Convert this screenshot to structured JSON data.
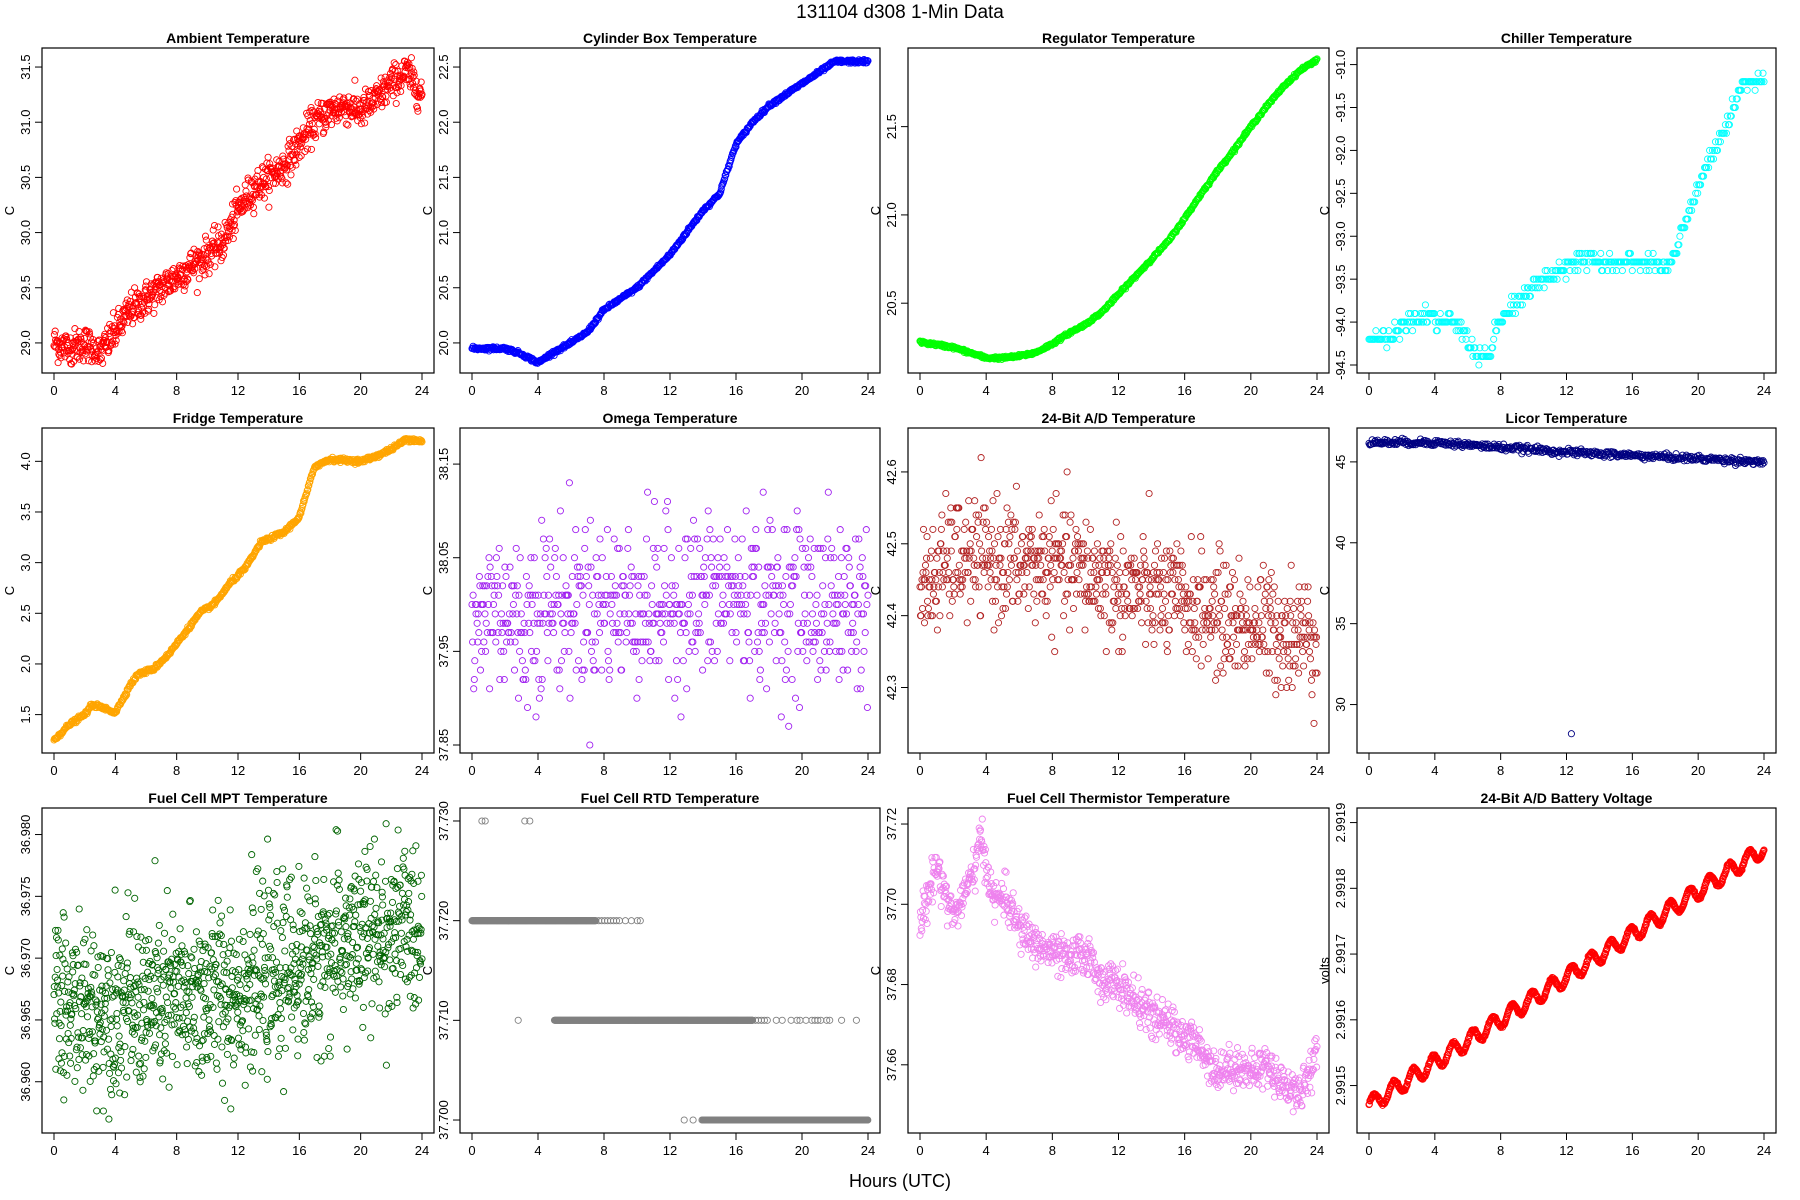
{
  "title": "131104   d308   1-Min Data",
  "x_axis_title": "Hours (UTC)",
  "chart_data": [
    {
      "type": "scatter",
      "title": "Ambient Temperature",
      "ylabel": "C",
      "color": "#ff0000",
      "xlim": [
        0,
        24
      ],
      "xticks": [
        0,
        4,
        8,
        12,
        16,
        20,
        24
      ],
      "ylim": [
        28.8,
        31.6
      ],
      "yticks": [
        29.0,
        29.5,
        30.0,
        30.5,
        31.0,
        31.5
      ],
      "ydec": 1,
      "trend": [
        [
          0,
          29.0
        ],
        [
          1,
          28.95
        ],
        [
          2,
          29.0
        ],
        [
          3,
          28.9
        ],
        [
          4,
          29.1
        ],
        [
          5,
          29.3
        ],
        [
          6,
          29.4
        ],
        [
          7,
          29.5
        ],
        [
          8,
          29.6
        ],
        [
          9,
          29.7
        ],
        [
          10,
          29.8
        ],
        [
          11,
          29.9
        ],
        [
          12,
          30.2
        ],
        [
          13,
          30.4
        ],
        [
          14,
          30.5
        ],
        [
          15,
          30.6
        ],
        [
          16,
          30.8
        ],
        [
          17,
          31.0
        ],
        [
          18,
          31.1
        ],
        [
          19,
          31.15
        ],
        [
          20,
          31.1
        ],
        [
          21,
          31.2
        ],
        [
          22,
          31.35
        ],
        [
          23,
          31.45
        ],
        [
          24,
          31.25
        ]
      ],
      "noise": 0.08,
      "n": 900
    },
    {
      "type": "scatter",
      "title": "Cylinder Box Temperature",
      "ylabel": "C",
      "color": "#0000ff",
      "xlim": [
        0,
        24
      ],
      "xticks": [
        0,
        4,
        8,
        12,
        16,
        20,
        24
      ],
      "ylim": [
        19.8,
        22.6
      ],
      "yticks": [
        20.0,
        20.5,
        21.0,
        21.5,
        22.0,
        22.5
      ],
      "ydec": 1,
      "trend": [
        [
          0,
          19.95
        ],
        [
          2,
          19.95
        ],
        [
          3,
          19.9
        ],
        [
          4,
          19.82
        ],
        [
          5,
          19.92
        ],
        [
          6,
          20.0
        ],
        [
          7,
          20.1
        ],
        [
          8,
          20.3
        ],
        [
          9,
          20.4
        ],
        [
          10,
          20.5
        ],
        [
          11,
          20.65
        ],
        [
          12,
          20.8
        ],
        [
          13,
          21.0
        ],
        [
          14,
          21.2
        ],
        [
          15,
          21.35
        ],
        [
          16,
          21.8
        ],
        [
          17,
          22.0
        ],
        [
          18,
          22.15
        ],
        [
          19,
          22.25
        ],
        [
          20,
          22.35
        ],
        [
          21,
          22.45
        ],
        [
          22,
          22.55
        ],
        [
          23,
          22.55
        ],
        [
          24,
          22.55
        ]
      ],
      "noise": 0.008,
      "n": 700
    },
    {
      "type": "scatter",
      "title": "Regulator Temperature",
      "ylabel": "C",
      "color": "#00ff00",
      "xlim": [
        0,
        24
      ],
      "xticks": [
        0,
        4,
        8,
        12,
        16,
        20,
        24
      ],
      "ylim": [
        20.15,
        21.9
      ],
      "yticks": [
        20.5,
        21.0,
        21.5
      ],
      "ydec": 1,
      "trend": [
        [
          0,
          20.28
        ],
        [
          2,
          20.25
        ],
        [
          3,
          20.22
        ],
        [
          4,
          20.19
        ],
        [
          5,
          20.19
        ],
        [
          6,
          20.2
        ],
        [
          7,
          20.22
        ],
        [
          8,
          20.27
        ],
        [
          9,
          20.33
        ],
        [
          10,
          20.38
        ],
        [
          11,
          20.45
        ],
        [
          12,
          20.55
        ],
        [
          13,
          20.65
        ],
        [
          14,
          20.75
        ],
        [
          15,
          20.85
        ],
        [
          16,
          20.98
        ],
        [
          17,
          21.12
        ],
        [
          18,
          21.25
        ],
        [
          19,
          21.37
        ],
        [
          20,
          21.5
        ],
        [
          21,
          21.62
        ],
        [
          22,
          21.73
        ],
        [
          23,
          21.82
        ],
        [
          24,
          21.88
        ]
      ],
      "noise": 0.004,
      "n": 700
    },
    {
      "type": "scatter",
      "title": "Chiller Temperature",
      "ylabel": "C",
      "color": "#00ffff",
      "xlim": [
        0,
        24
      ],
      "xticks": [
        0,
        4,
        8,
        12,
        16,
        20,
        24
      ],
      "ylim": [
        -94.5,
        -90.9
      ],
      "yticks": [
        -94.5,
        -94.0,
        -93.5,
        -93.0,
        -92.5,
        -92.0,
        -91.5,
        -91.0
      ],
      "ydec": 1,
      "trend": [
        [
          0,
          -94.2
        ],
        [
          1.4,
          -94.2
        ],
        [
          1.6,
          -94.1
        ],
        [
          2.4,
          -94.0
        ],
        [
          3.0,
          -94.0
        ],
        [
          3.4,
          -93.9
        ],
        [
          4.2,
          -94.0
        ],
        [
          5.2,
          -94.0
        ],
        [
          6.0,
          -94.2
        ],
        [
          6.6,
          -94.4
        ],
        [
          7.4,
          -94.4
        ],
        [
          7.6,
          -94.1
        ],
        [
          8.4,
          -93.9
        ],
        [
          9.4,
          -93.7
        ],
        [
          10.6,
          -93.5
        ],
        [
          11.6,
          -93.4
        ],
        [
          12.4,
          -93.3
        ],
        [
          17.4,
          -93.3
        ],
        [
          18.2,
          -93.4
        ],
        [
          19.0,
          -93.0
        ],
        [
          20.0,
          -92.4
        ],
        [
          21.0,
          -92.0
        ],
        [
          22.0,
          -91.6
        ],
        [
          22.8,
          -91.2
        ],
        [
          24,
          -91.2
        ]
      ],
      "noise": 0.05,
      "step": 0.1,
      "n": 400
    },
    {
      "type": "scatter",
      "title": "Fridge Temperature",
      "ylabel": "C",
      "color": "#ffa500",
      "xlim": [
        0,
        24
      ],
      "xticks": [
        0,
        4,
        8,
        12,
        16,
        20,
        24
      ],
      "ylim": [
        1.2,
        4.25
      ],
      "yticks": [
        1.5,
        2.0,
        2.5,
        3.0,
        3.5,
        4.0
      ],
      "ydec": 1,
      "trend": [
        [
          0,
          1.25
        ],
        [
          1,
          1.4
        ],
        [
          2,
          1.5
        ],
        [
          2.5,
          1.6
        ],
        [
          3.5,
          1.55
        ],
        [
          4,
          1.52
        ],
        [
          5,
          1.8
        ],
        [
          5.5,
          1.9
        ],
        [
          6.5,
          1.95
        ],
        [
          7.5,
          2.1
        ],
        [
          8.5,
          2.3
        ],
        [
          9.5,
          2.5
        ],
        [
          10.5,
          2.6
        ],
        [
          11.5,
          2.8
        ],
        [
          12.5,
          2.95
        ],
        [
          13.5,
          3.2
        ],
        [
          15,
          3.3
        ],
        [
          16,
          3.45
        ],
        [
          17,
          3.95
        ],
        [
          18,
          4.02
        ],
        [
          20,
          4.0
        ],
        [
          21,
          4.05
        ],
        [
          22,
          4.12
        ],
        [
          23,
          4.22
        ],
        [
          24,
          4.2
        ]
      ],
      "noise": 0.01,
      "n": 700
    },
    {
      "type": "scatter",
      "title": "Omega Temperature",
      "ylabel": "C",
      "color": "#a020f0",
      "xlim": [
        0,
        24
      ],
      "xticks": [
        0,
        4,
        8,
        12,
        16,
        20,
        24
      ],
      "ylim": [
        37.85,
        38.18
      ],
      "yticks": [
        37.85,
        37.95,
        38.05,
        38.15
      ],
      "ydec": 2,
      "trend": [
        [
          0,
          37.95
        ],
        [
          1,
          38.0
        ],
        [
          2,
          38.0
        ],
        [
          3,
          37.97
        ],
        [
          4,
          38.0
        ],
        [
          5,
          38.0
        ],
        [
          6,
          38.0
        ],
        [
          8,
          38.0
        ],
        [
          12,
          38.0
        ],
        [
          16,
          38.01
        ],
        [
          20,
          38.0
        ],
        [
          24,
          38.0
        ]
      ],
      "noise": 0.045,
      "step": 0.01,
      "n": 700
    },
    {
      "type": "scatter",
      "title": "24-Bit A/D Temperature",
      "ylabel": "C",
      "color": "#b22222",
      "xlim": [
        0,
        24
      ],
      "xticks": [
        0,
        4,
        8,
        12,
        16,
        20,
        24
      ],
      "ylim": [
        42.22,
        42.65
      ],
      "yticks": [
        42.3,
        42.4,
        42.5,
        42.6
      ],
      "ydec": 1,
      "trend": [
        [
          0,
          42.43
        ],
        [
          2,
          42.48
        ],
        [
          4,
          42.48
        ],
        [
          6,
          42.47
        ],
        [
          8,
          42.47
        ],
        [
          10,
          42.46
        ],
        [
          12,
          42.44
        ],
        [
          14,
          42.43
        ],
        [
          16,
          42.42
        ],
        [
          18,
          42.4
        ],
        [
          20,
          42.39
        ],
        [
          22,
          42.38
        ],
        [
          24,
          42.37
        ]
      ],
      "noise": 0.04,
      "step": 0.01,
      "n": 800
    },
    {
      "type": "scatter",
      "title": "Licor Temperature",
      "ylabel": "C",
      "color": "#000080",
      "xlim": [
        0,
        24
      ],
      "xticks": [
        0,
        4,
        8,
        12,
        16,
        20,
        24
      ],
      "ylim": [
        27.5,
        46.6
      ],
      "yticks": [
        30,
        35,
        40,
        45
      ],
      "ydec": 0,
      "trend": [
        [
          0,
          46.2
        ],
        [
          4,
          46.2
        ],
        [
          8,
          45.9
        ],
        [
          12,
          45.6
        ],
        [
          16,
          45.4
        ],
        [
          20,
          45.2
        ],
        [
          24,
          45.0
        ]
      ],
      "noise": 0.1,
      "n": 500,
      "outliers": [
        [
          12.3,
          28.2
        ]
      ]
    },
    {
      "type": "scatter",
      "title": "Fuel Cell MPT Temperature",
      "ylabel": "C",
      "color": "#006400",
      "xlim": [
        0,
        24
      ],
      "xticks": [
        0,
        4,
        8,
        12,
        16,
        20,
        24
      ],
      "ylim": [
        36.9565,
        36.9815
      ],
      "yticks": [
        36.96,
        36.965,
        36.97,
        36.975,
        36.98
      ],
      "ydec": 3,
      "trend": [
        [
          0,
          36.9655
        ],
        [
          4,
          36.966
        ],
        [
          8,
          36.9665
        ],
        [
          12,
          36.9675
        ],
        [
          16,
          36.9695
        ],
        [
          20,
          36.9715
        ],
        [
          24,
          36.9725
        ]
      ],
      "noise": 0.0035,
      "n": 1200
    },
    {
      "type": "scatter",
      "title": "Fuel Cell RTD Temperature",
      "ylabel": "C",
      "color": "#808080",
      "xlim": [
        0,
        24
      ],
      "xticks": [
        0,
        4,
        8,
        12,
        16,
        20,
        24
      ],
      "ylim": [
        37.6995,
        37.7305
      ],
      "yticks": [
        37.7,
        37.71,
        37.72,
        37.73
      ],
      "ydec": 3,
      "bands": [
        {
          "y": 37.72,
          "from": 0,
          "to": 7.5,
          "dense": true
        },
        {
          "y": 37.72,
          "from": 7.5,
          "to": 10.2,
          "dense": false
        },
        {
          "y": 37.71,
          "from": 5,
          "to": 17,
          "dense": true
        },
        {
          "y": 37.71,
          "from": 17,
          "to": 24,
          "dense": false
        },
        {
          "y": 37.7,
          "from": 12.5,
          "to": 14,
          "dense": false
        },
        {
          "y": 37.7,
          "from": 14,
          "to": 24,
          "dense": true
        }
      ],
      "outliers": [
        [
          0.6,
          37.73
        ],
        [
          0.8,
          37.73
        ],
        [
          3.2,
          37.73
        ],
        [
          3.5,
          37.73
        ],
        [
          2.8,
          37.71
        ]
      ]
    },
    {
      "type": "scatter",
      "title": "Fuel Cell Thermistor Temperature",
      "ylabel": "C",
      "color": "#ee82ee",
      "xlim": [
        0,
        24
      ],
      "xticks": [
        0,
        4,
        8,
        12,
        16,
        20,
        24
      ],
      "ylim": [
        37.645,
        37.722
      ],
      "yticks": [
        37.66,
        37.68,
        37.7,
        37.72
      ],
      "ydec": 2,
      "trend": [
        [
          0,
          37.695
        ],
        [
          1,
          37.71
        ],
        [
          2,
          37.697
        ],
        [
          3,
          37.705
        ],
        [
          3.7,
          37.716
        ],
        [
          4.5,
          37.7
        ],
        [
          5,
          37.703
        ],
        [
          6,
          37.694
        ],
        [
          7,
          37.69
        ],
        [
          8,
          37.688
        ],
        [
          9,
          37.686
        ],
        [
          10,
          37.688
        ],
        [
          11,
          37.681
        ],
        [
          12,
          37.68
        ],
        [
          13,
          37.676
        ],
        [
          14,
          37.672
        ],
        [
          15,
          37.67
        ],
        [
          16,
          37.667
        ],
        [
          17,
          37.664
        ],
        [
          18,
          37.658
        ],
        [
          19,
          37.66
        ],
        [
          20,
          37.658
        ],
        [
          21,
          37.66
        ],
        [
          22,
          37.655
        ],
        [
          23,
          37.653
        ],
        [
          24,
          37.663
        ]
      ],
      "noise": 0.0025,
      "n": 900
    },
    {
      "type": "scatter",
      "title": "24-Bit A/D Battery Voltage",
      "ylabel": "volts",
      "color": "#ff0000",
      "xlim": [
        0,
        24
      ],
      "xticks": [
        0,
        4,
        8,
        12,
        16,
        20,
        24
      ],
      "ylim": [
        2.99144,
        2.99191
      ],
      "yticks": [
        2.9915,
        2.9916,
        2.9917,
        2.9918,
        2.9919
      ],
      "ydec": 4,
      "trend": [
        [
          0,
          2.99147
        ],
        [
          24,
          2.99186
        ]
      ],
      "wave": 1.2e-05,
      "waveperiod": 1.2,
      "noise": 1e-06,
      "n": 900
    }
  ]
}
